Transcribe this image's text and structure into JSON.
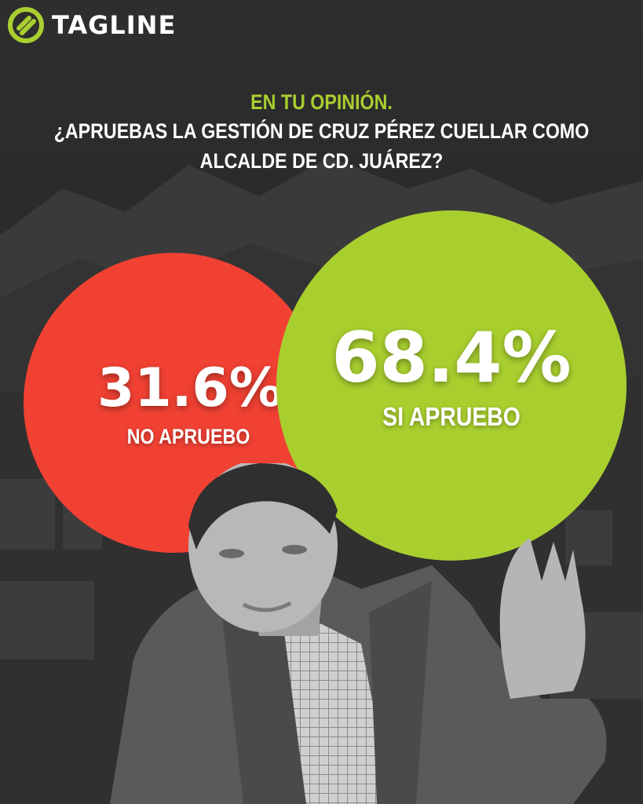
{
  "brand": {
    "name": "TAGLINE",
    "logo_icon": "tagline-logo-icon",
    "accent": "#a9cf2f"
  },
  "question": {
    "eyebrow": "EN TU OPINIÓN.",
    "line1": "¿APRUEBAS LA GESTIÓN DE CRUZ PÉREZ CUELLAR COMO",
    "line2": "ALCALDE DE CD. JUÁREZ?"
  },
  "results": [
    {
      "value": "31.6%",
      "label": "NO APRUEBO",
      "color": "#f04133"
    },
    {
      "value": "68.4%",
      "label": "SI APRUEBO",
      "color": "#a9cf2f"
    }
  ],
  "colors": {
    "background": "#2b2b2b",
    "text": "#ffffff"
  }
}
